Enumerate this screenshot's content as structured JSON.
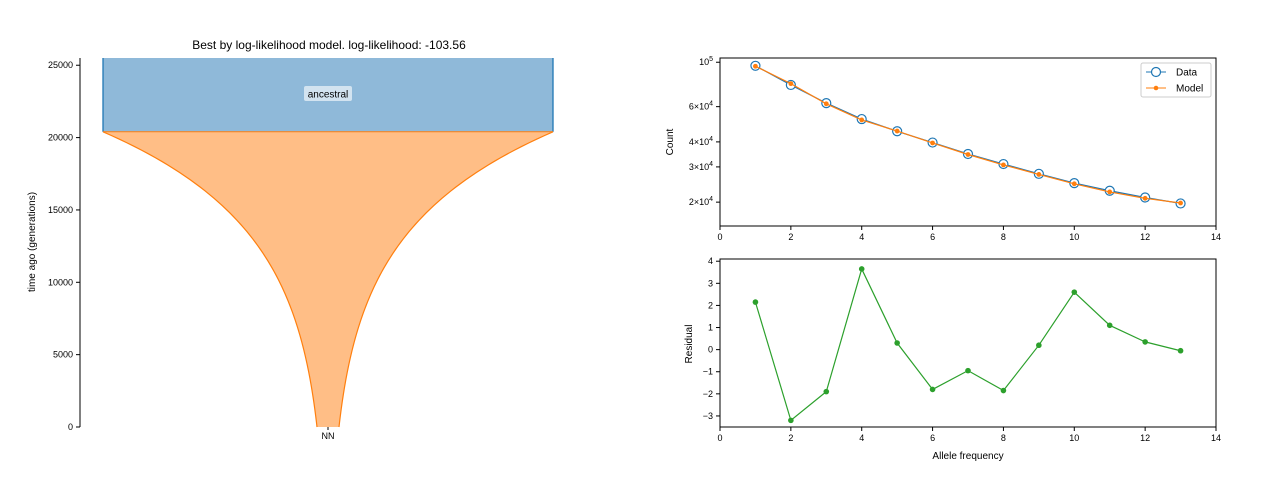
{
  "chart_data": [
    {
      "type": "area",
      "title": "Best by log-likelihood model. log-likelihood: -103.56",
      "ylabel": "time ago (generations)",
      "xlabel": "",
      "ylim": [
        0,
        25500
      ],
      "yticks": [
        0,
        5000,
        10000,
        15000,
        20000,
        25000
      ],
      "xtick_labels": [
        "NN"
      ],
      "colors": {
        "ancestral": "#8fb9d9",
        "ancestral_edge": "#1f77b4",
        "nn": "#ffbe86",
        "nn_edge": "#ff7f0e"
      },
      "epochs": [
        {
          "name": "ancestral",
          "start": 20400,
          "end": 25500,
          "shape": "constant"
        },
        {
          "name": "NN",
          "start": 0,
          "end": 20400,
          "shape": "exponential"
        }
      ],
      "annotations": [
        "ancestral"
      ]
    },
    {
      "type": "line",
      "ylabel": "Count",
      "yscale": "log",
      "xlim": [
        0,
        14
      ],
      "xticks": [
        0,
        2,
        4,
        6,
        8,
        10,
        12,
        14
      ],
      "ylim": [
        15200,
        105000
      ],
      "yticks": [
        {
          "value": 20000,
          "base": "2",
          "exp": "4"
        },
        {
          "value": 30000,
          "base": "3",
          "exp": "4"
        },
        {
          "value": 40000,
          "base": "4",
          "exp": "4"
        },
        {
          "value": 60000,
          "base": "6",
          "exp": "4"
        },
        {
          "value": 100000,
          "base": "",
          "exp": "5"
        }
      ],
      "legend_loc": "upper-right",
      "x": [
        1,
        2,
        3,
        4,
        5,
        6,
        7,
        8,
        9,
        10,
        11,
        12,
        13
      ],
      "series": [
        {
          "name": "Data",
          "color": "#1f77b4",
          "values": [
            96000,
            77000,
            62500,
            52000,
            45200,
            39700,
            34800,
            31000,
            27700,
            24900,
            22800,
            21100,
            19700
          ]
        },
        {
          "name": "Model",
          "color": "#ff7f0e",
          "values": [
            95500,
            78200,
            62000,
            51500,
            45300,
            39500,
            34600,
            30700,
            27500,
            24700,
            22500,
            20900,
            19800
          ]
        }
      ]
    },
    {
      "type": "line",
      "ylabel": "Residual",
      "xlabel": "Allele frequency",
      "xlim": [
        0,
        14
      ],
      "xticks": [
        0,
        2,
        4,
        6,
        8,
        10,
        12,
        14
      ],
      "ylim": [
        -3.5,
        4.1
      ],
      "yticks": [
        -3,
        -2,
        -1,
        0,
        1,
        2,
        3,
        4
      ],
      "x": [
        1,
        2,
        3,
        4,
        5,
        6,
        7,
        8,
        9,
        10,
        11,
        12,
        13
      ],
      "series": [
        {
          "color": "#2ca02c",
          "values": [
            2.15,
            -3.2,
            -1.9,
            3.65,
            0.3,
            -1.8,
            -0.95,
            -1.85,
            0.2,
            2.6,
            1.1,
            0.35,
            -0.05
          ]
        }
      ]
    }
  ]
}
